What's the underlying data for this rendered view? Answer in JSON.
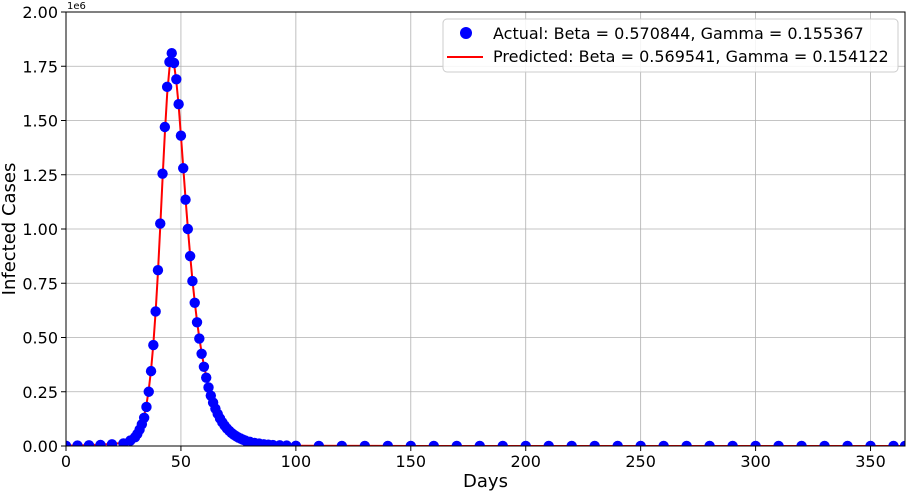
{
  "chart_data": {
    "type": "scatter",
    "xlabel": "Days",
    "ylabel": "Infected Cases",
    "y_offset_label": "1e6",
    "xlim": [
      0,
      365
    ],
    "ylim": [
      0,
      2000000
    ],
    "x_ticks": [
      0,
      50,
      100,
      150,
      200,
      250,
      300,
      350
    ],
    "x_tick_labels": [
      "0",
      "50",
      "100",
      "150",
      "200",
      "250",
      "300",
      "350"
    ],
    "y_ticks": [
      0,
      250000,
      500000,
      750000,
      1000000,
      1250000,
      1500000,
      1750000,
      2000000
    ],
    "y_tick_labels": [
      "0.00",
      "0.25",
      "0.50",
      "0.75",
      "1.00",
      "1.25",
      "1.50",
      "1.75",
      "2.00"
    ],
    "grid": true,
    "legend_position": "top-right",
    "series": [
      {
        "name": "Actual: Beta = 0.570844, Gamma = 0.155367",
        "kind": "markers",
        "color": "#0000ff",
        "x": [
          0,
          5,
          10,
          15,
          20,
          25,
          28,
          30,
          31,
          32,
          33,
          34,
          35,
          36,
          37,
          38,
          39,
          40,
          41,
          42,
          43,
          44,
          45,
          46,
          47,
          48,
          49,
          50,
          51,
          52,
          53,
          54,
          55,
          56,
          57,
          58,
          59,
          60,
          61,
          62,
          63,
          64,
          65,
          66,
          67,
          68,
          69,
          70,
          71,
          72,
          73,
          74,
          75,
          76,
          77,
          78,
          80,
          82,
          84,
          86,
          88,
          90,
          93,
          96,
          100,
          110,
          120,
          130,
          140,
          150,
          160,
          170,
          180,
          190,
          200,
          210,
          220,
          230,
          240,
          250,
          260,
          270,
          280,
          290,
          300,
          310,
          320,
          330,
          340,
          350,
          360,
          365
        ],
        "y": [
          1000,
          2000,
          3000,
          5000,
          8000,
          12000,
          25000,
          40000,
          55000,
          75000,
          100000,
          130000,
          180000,
          250000,
          345000,
          465000,
          620000,
          810000,
          1025000,
          1255000,
          1470000,
          1655000,
          1770000,
          1810000,
          1765000,
          1690000,
          1575000,
          1430000,
          1280000,
          1135000,
          1000000,
          875000,
          760000,
          660000,
          570000,
          495000,
          425000,
          365000,
          315000,
          270000,
          232000,
          200000,
          172000,
          148000,
          127000,
          109000,
          94000,
          81000,
          70000,
          60000,
          52000,
          45000,
          39000,
          34000,
          29000,
          25000,
          19000,
          14000,
          11000,
          8000,
          6000,
          4500,
          3000,
          2000,
          1000,
          500,
          300,
          200,
          100,
          100,
          100,
          100,
          100,
          100,
          100,
          100,
          100,
          100,
          100,
          100,
          100,
          100,
          100,
          100,
          100,
          100,
          100,
          100,
          100,
          100,
          100,
          100
        ]
      },
      {
        "name": "Predicted: Beta = 0.569541, Gamma = 0.154122",
        "kind": "line",
        "color": "#ff0000",
        "x": [
          0,
          10,
          20,
          25,
          28,
          30,
          32,
          34,
          35,
          36,
          37,
          38,
          39,
          40,
          41,
          42,
          43,
          44,
          45,
          46,
          47,
          48,
          49,
          50,
          51,
          52,
          53,
          54,
          55,
          56,
          57,
          58,
          59,
          60,
          62,
          64,
          66,
          68,
          70,
          72,
          74,
          76,
          78,
          80,
          85,
          90,
          95,
          100,
          150,
          200,
          250,
          300,
          365
        ],
        "y": [
          2000,
          4000,
          9000,
          15000,
          30000,
          45000,
          80000,
          140000,
          190000,
          260000,
          350000,
          470000,
          620000,
          800000,
          1010000,
          1230000,
          1440000,
          1620000,
          1740000,
          1790000,
          1760000,
          1680000,
          1570000,
          1430000,
          1285000,
          1140000,
          1005000,
          880000,
          765000,
          665000,
          575000,
          498000,
          430000,
          370000,
          275000,
          205000,
          152000,
          113000,
          84000,
          62000,
          46000,
          34000,
          25000,
          19000,
          9000,
          4000,
          2000,
          1000,
          100,
          100,
          100,
          100,
          100
        ]
      }
    ]
  }
}
